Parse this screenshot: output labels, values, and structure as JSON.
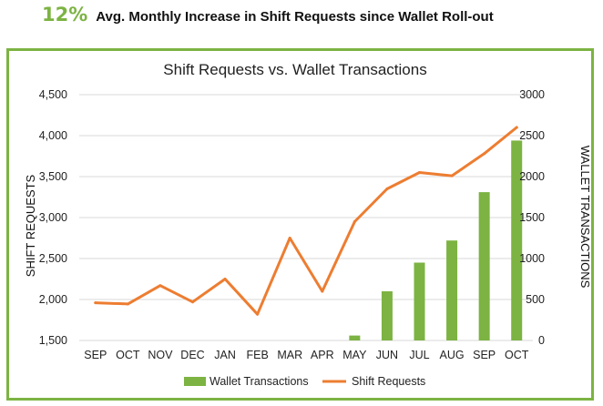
{
  "headline": {
    "big_value": "12%",
    "text": "Avg. Monthly Increase in Shift Requests since Wallet Roll-out",
    "accent_color": "#7cb342"
  },
  "chart_data": {
    "type": "bar+line",
    "title": "Shift Requests vs. Wallet Transactions",
    "categories": [
      "SEP",
      "OCT",
      "NOV",
      "DEC",
      "JAN",
      "FEB",
      "MAR",
      "APR",
      "MAY",
      "JUN",
      "JUL",
      "AUG",
      "SEP",
      "OCT"
    ],
    "y_left": {
      "label": "SHIFT REQUESTS",
      "lim": [
        1500,
        4500
      ],
      "ticks": [
        1500,
        2000,
        2500,
        3000,
        3500,
        4000,
        4500
      ],
      "tick_labels": [
        "1,500",
        "2,000",
        "2,500",
        "3,000",
        "3,500",
        "4,000",
        "4,500"
      ]
    },
    "y_right": {
      "label": "WALLET TRANSACTIONS",
      "lim": [
        0,
        3000
      ],
      "ticks": [
        0,
        500,
        1000,
        1500,
        2000,
        2500,
        3000
      ],
      "tick_labels": [
        "0",
        "500",
        "1000",
        "1500",
        "2000",
        "2500",
        "3000"
      ]
    },
    "series": [
      {
        "name": "Wallet Transactions",
        "type": "bar",
        "axis": "right",
        "color": "#7cb342",
        "values": [
          0,
          0,
          0,
          0,
          0,
          0,
          0,
          0,
          60,
          600,
          950,
          1220,
          1810,
          2440
        ]
      },
      {
        "name": "Shift Requests",
        "type": "line",
        "axis": "left",
        "color": "#ed7d31",
        "values": [
          1960,
          1945,
          2170,
          1970,
          2250,
          1820,
          2750,
          2100,
          2950,
          3350,
          3550,
          3510,
          3780,
          4100
        ]
      }
    ],
    "grid": true,
    "legend": "bottom"
  }
}
